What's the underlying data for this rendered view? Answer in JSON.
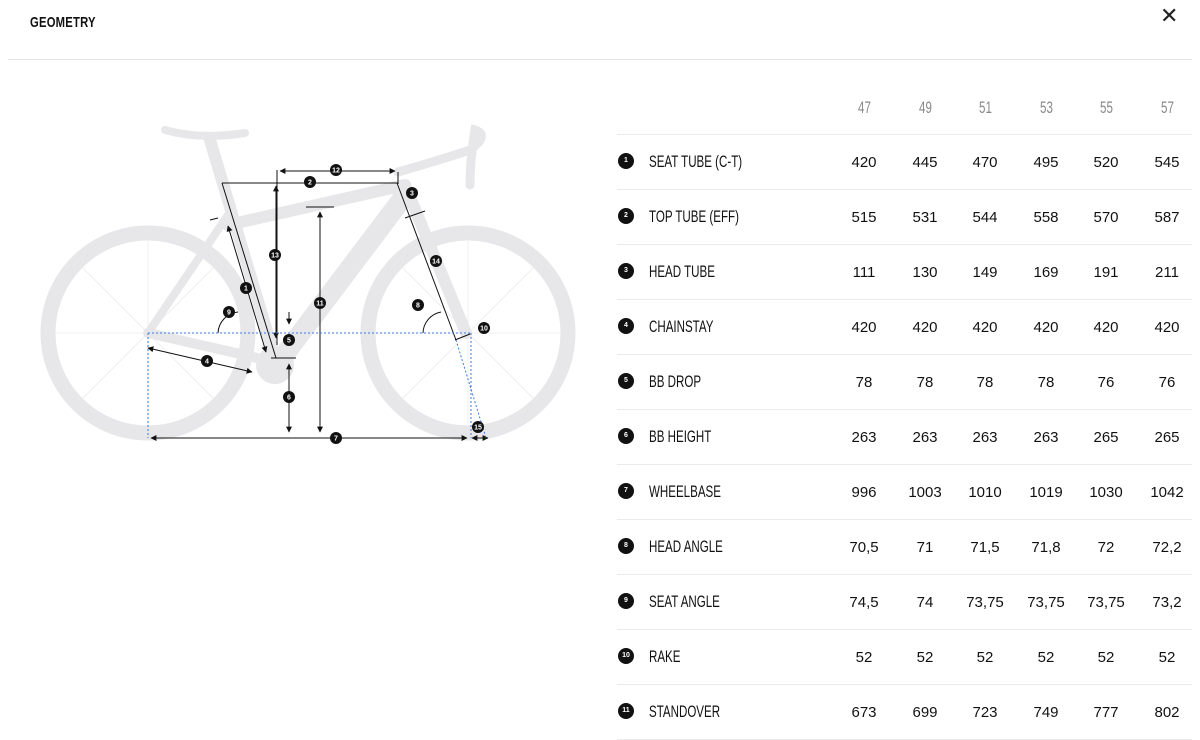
{
  "header": {
    "title": "GEOMETRY",
    "close_icon": "close-icon"
  },
  "diagram": {
    "markers": [
      "1",
      "2",
      "3",
      "4",
      "5",
      "6",
      "7",
      "8",
      "9",
      "10",
      "11",
      "12",
      "13",
      "14",
      "15"
    ]
  },
  "table": {
    "sizes": [
      "47",
      "49",
      "51",
      "53",
      "55",
      "57"
    ],
    "rows": [
      {
        "num": "1",
        "label": "SEAT TUBE (C-T)",
        "values": [
          "420",
          "445",
          "470",
          "495",
          "520",
          "545"
        ]
      },
      {
        "num": "2",
        "label": "TOP TUBE (EFF)",
        "values": [
          "515",
          "531",
          "544",
          "558",
          "570",
          "587"
        ]
      },
      {
        "num": "3",
        "label": "HEAD TUBE",
        "values": [
          "111",
          "130",
          "149",
          "169",
          "191",
          "211"
        ]
      },
      {
        "num": "4",
        "label": "CHAINSTAY",
        "values": [
          "420",
          "420",
          "420",
          "420",
          "420",
          "420"
        ]
      },
      {
        "num": "5",
        "label": "BB DROP",
        "values": [
          "78",
          "78",
          "78",
          "78",
          "76",
          "76"
        ]
      },
      {
        "num": "6",
        "label": "BB HEIGHT",
        "values": [
          "263",
          "263",
          "263",
          "263",
          "265",
          "265"
        ]
      },
      {
        "num": "7",
        "label": "WHEELBASE",
        "values": [
          "996",
          "1003",
          "1010",
          "1019",
          "1030",
          "1042"
        ]
      },
      {
        "num": "8",
        "label": "HEAD ANGLE",
        "values": [
          "70,5",
          "71",
          "71,5",
          "71,8",
          "72",
          "72,2"
        ]
      },
      {
        "num": "9",
        "label": "SEAT ANGLE",
        "values": [
          "74,5",
          "74",
          "73,75",
          "73,75",
          "73,75",
          "73,2"
        ]
      },
      {
        "num": "10",
        "label": "RAKE",
        "values": [
          "52",
          "52",
          "52",
          "52",
          "52",
          "52"
        ]
      },
      {
        "num": "11",
        "label": "STANDOVER",
        "values": [
          "673",
          "699",
          "723",
          "749",
          "777",
          "802"
        ]
      }
    ]
  }
}
